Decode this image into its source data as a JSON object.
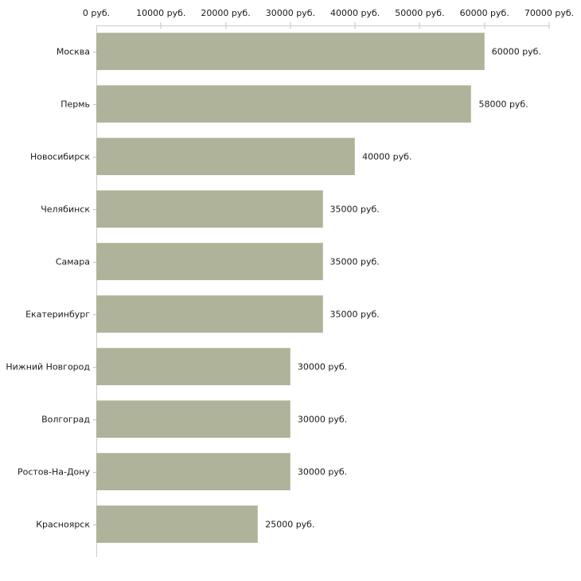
{
  "chart_data": {
    "type": "bar",
    "orientation": "horizontal",
    "title": "",
    "xlabel": "",
    "ylabel": "",
    "xlim": [
      0,
      70000
    ],
    "x_ticks": [
      0,
      10000,
      20000,
      30000,
      40000,
      50000,
      60000,
      70000
    ],
    "x_tick_labels": [
      "0 руб.",
      "10000 руб.",
      "20000 руб.",
      "30000 руб.",
      "40000 руб.",
      "50000 руб.",
      "60000 руб.",
      "70000 руб."
    ],
    "categories": [
      "Москва",
      "Пермь",
      "Новосибирск",
      "Челябинск",
      "Самара",
      "Екатеринбург",
      "Нижний Новгород",
      "Волгоград",
      "Ростов-На-Дону",
      "Красноярск"
    ],
    "values": [
      60000,
      58000,
      40000,
      35000,
      35000,
      35000,
      30000,
      30000,
      30000,
      25000
    ],
    "value_labels": [
      "60000 руб.",
      "58000 руб.",
      "40000 руб.",
      "35000 руб.",
      "35000 руб.",
      "35000 руб.",
      "30000 руб.",
      "30000 руб.",
      "30000 руб.",
      "25000 руб."
    ],
    "grid": false,
    "legend": null,
    "colors": {
      "bar": "#aeb39a",
      "bar_edge": "#c2c5ae",
      "axis_line": "#cccccc",
      "tick": "#c3c3a3",
      "text": "#1a1a1a",
      "background": "#ffffff"
    }
  }
}
